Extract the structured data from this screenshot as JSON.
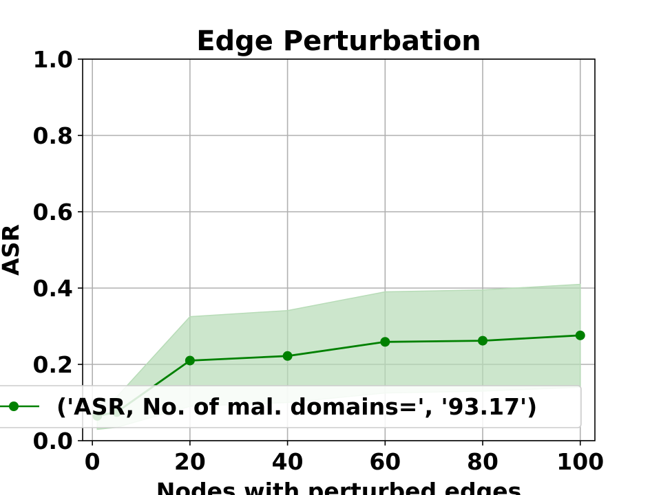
{
  "chart_data": {
    "type": "line",
    "title": "Edge Perturbation",
    "xlabel": "Nodes with perturbed edges",
    "ylabel": "ASR",
    "xlim": [
      -2,
      103
    ],
    "ylim": [
      0.0,
      1.0
    ],
    "xticks": [
      0,
      20,
      40,
      60,
      80,
      100
    ],
    "yticks": [
      "0.0",
      "0.2",
      "0.4",
      "0.6",
      "0.8",
      "1.0"
    ],
    "grid": true,
    "legend_position": "lower-left",
    "series": [
      {
        "name": "('ASR, No. of mal. domains=', '93.17')",
        "color": "#008000",
        "band_color": "#b7dcb7",
        "x": [
          1,
          5,
          20,
          40,
          60,
          80,
          100
        ],
        "values": [
          0.065,
          0.075,
          0.21,
          0.222,
          0.259,
          0.262,
          0.276
        ],
        "lower": [
          0.03,
          0.035,
          0.09,
          0.1,
          0.125,
          0.13,
          0.14
        ],
        "upper": [
          0.1,
          0.115,
          0.325,
          0.341,
          0.39,
          0.395,
          0.41
        ]
      }
    ]
  }
}
